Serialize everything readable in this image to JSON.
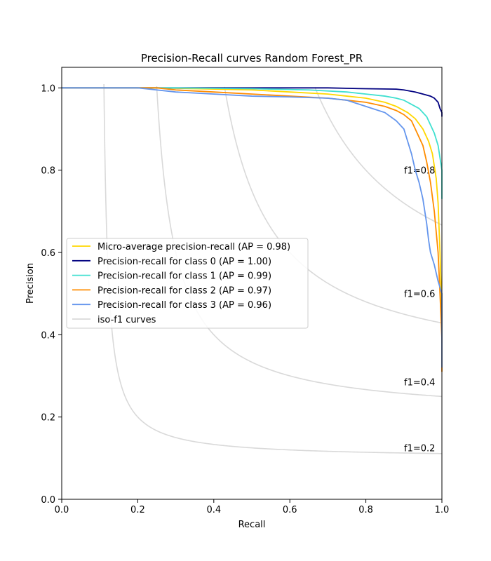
{
  "chart_data": {
    "type": "line",
    "title": "Precision-Recall curves Random Forest_PR",
    "xlabel": "Recall",
    "ylabel": "Precision",
    "xlim": [
      0.0,
      1.0
    ],
    "ylim": [
      0.0,
      1.05
    ],
    "xticks": [
      "0.0",
      "0.2",
      "0.4",
      "0.6",
      "0.8",
      "1.0"
    ],
    "yticks": [
      "0.0",
      "0.2",
      "0.4",
      "0.6",
      "0.8",
      "1.0"
    ],
    "grid": false,
    "legend_position": "center-left",
    "legend_entries": [
      "Micro-average precision-recall (AP = 0.98)",
      "Precision-recall for class 0 (AP = 1.00)",
      "Precision-recall for class 1 (AP = 0.99)",
      "Precision-recall for class 2 (AP = 0.97)",
      "Precision-recall for class 3 (AP = 0.96)",
      "iso-f1 curves"
    ],
    "iso_f1": {
      "color": "#d9d9d9",
      "values": [
        0.2,
        0.4,
        0.6,
        0.8
      ],
      "labels": [
        "f1=0.2",
        "f1=0.4",
        "f1=0.6",
        "f1=0.8"
      ]
    },
    "series": [
      {
        "name": "Micro-average precision-recall (AP = 0.98)",
        "color": "#ffd700",
        "x": [
          0,
          0.25,
          0.35,
          0.5,
          0.6,
          0.7,
          0.75,
          0.8,
          0.85,
          0.88,
          0.91,
          0.93,
          0.95,
          0.965,
          0.975,
          0.985,
          0.99,
          0.995,
          1.0,
          1.0
        ],
        "y": [
          1.0,
          1.0,
          0.998,
          0.995,
          0.99,
          0.985,
          0.98,
          0.975,
          0.965,
          0.955,
          0.94,
          0.925,
          0.9,
          0.87,
          0.84,
          0.78,
          0.72,
          0.6,
          0.45,
          0.38
        ]
      },
      {
        "name": "Precision-recall for class 0 (AP = 1.00)",
        "color": "#000080",
        "x": [
          0,
          0.3,
          0.5,
          0.7,
          0.8,
          0.88,
          0.9,
          0.93,
          0.95,
          0.97,
          0.98,
          0.99,
          0.995,
          1.0,
          1.0
        ],
        "y": [
          1.0,
          1.0,
          1.0,
          1.0,
          0.998,
          0.997,
          0.995,
          0.99,
          0.985,
          0.98,
          0.975,
          0.965,
          0.95,
          0.94,
          0.93
        ]
      },
      {
        "name": "Precision-recall for class 1 (AP = 0.99)",
        "color": "#40e0d0",
        "x": [
          0,
          0.3,
          0.5,
          0.65,
          0.75,
          0.8,
          0.85,
          0.88,
          0.9,
          0.92,
          0.94,
          0.96,
          0.97,
          0.98,
          0.99,
          0.995,
          1.0,
          1.0
        ],
        "y": [
          1.0,
          1.0,
          0.998,
          0.995,
          0.99,
          0.985,
          0.98,
          0.975,
          0.97,
          0.96,
          0.95,
          0.93,
          0.91,
          0.89,
          0.86,
          0.83,
          0.8,
          0.73
        ]
      },
      {
        "name": "Precision-recall for class 2 (AP = 0.97)",
        "color": "#ff8c00",
        "x": [
          0,
          0.25,
          0.3,
          0.4,
          0.5,
          0.6,
          0.7,
          0.75,
          0.8,
          0.85,
          0.88,
          0.9,
          0.92,
          0.93,
          0.95,
          0.96,
          0.97,
          0.98,
          0.99,
          0.995,
          1.0,
          1.0
        ],
        "y": [
          1.0,
          1.0,
          0.995,
          0.99,
          0.985,
          0.98,
          0.975,
          0.97,
          0.965,
          0.955,
          0.945,
          0.935,
          0.92,
          0.9,
          0.86,
          0.82,
          0.77,
          0.7,
          0.6,
          0.5,
          0.39,
          0.31
        ]
      },
      {
        "name": "Precision-recall for class 3 (AP = 0.96)",
        "color": "#6495ed",
        "x": [
          0,
          0.2,
          0.3,
          0.4,
          0.5,
          0.6,
          0.7,
          0.75,
          0.8,
          0.85,
          0.88,
          0.9,
          0.91,
          0.92,
          0.93,
          0.94,
          0.95,
          0.96,
          0.965,
          0.97,
          0.98,
          0.99,
          1.0,
          1.0
        ],
        "y": [
          1.0,
          1.0,
          0.99,
          0.985,
          0.98,
          0.978,
          0.975,
          0.97,
          0.955,
          0.94,
          0.92,
          0.9,
          0.87,
          0.84,
          0.8,
          0.77,
          0.73,
          0.67,
          0.63,
          0.6,
          0.57,
          0.53,
          0.5,
          0.32
        ]
      }
    ]
  }
}
